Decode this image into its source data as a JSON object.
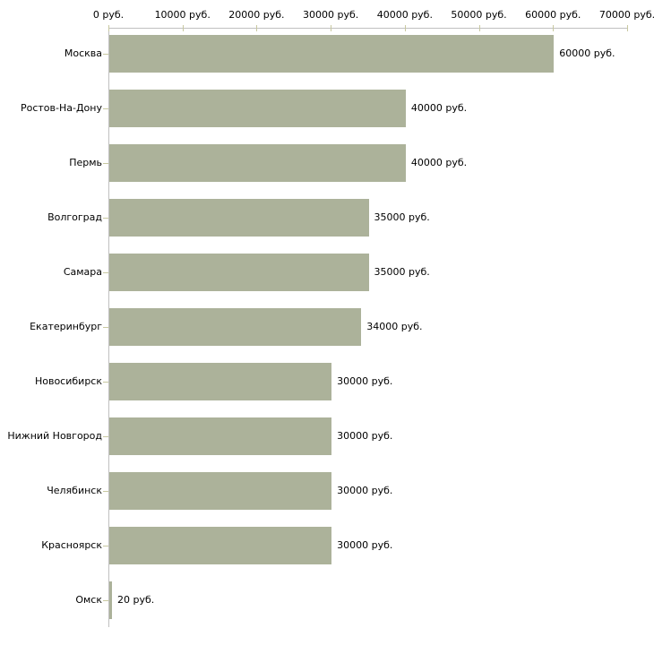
{
  "chart_data": {
    "type": "bar",
    "orientation": "horizontal",
    "title": "",
    "categories": [
      "Москва",
      "Ростов-На-Дону",
      "Пермь",
      "Волгоград",
      "Самара",
      "Екатеринбург",
      "Новосибирск",
      "Нижний Новгород",
      "Челябинск",
      "Красноярск",
      "Омск"
    ],
    "values": [
      60000,
      40000,
      40000,
      35000,
      35000,
      34000,
      30000,
      30000,
      30000,
      30000,
      20
    ],
    "value_labels": [
      "60000 руб.",
      "40000 руб.",
      "40000 руб.",
      "35000 руб.",
      "35000 руб.",
      "34000 руб.",
      "30000 руб.",
      "30000 руб.",
      "30000 руб.",
      "30000 руб.",
      "20 руб."
    ],
    "x_axis": {
      "min": 0,
      "max": 70000,
      "tick_interval": 10000,
      "tick_labels": [
        "0 руб.",
        "10000 руб.",
        "20000 руб.",
        "30000 руб.",
        "40000 руб.",
        "50000 руб.",
        "60000 руб.",
        "70000 руб."
      ]
    },
    "ylabel": "",
    "xlabel": "",
    "grid": false,
    "legend": false,
    "colors": {
      "bar": "#acb29a",
      "axis": "#c0c0c0",
      "tick": "#c8c8a0",
      "text": "#000000",
      "background": "#ffffff"
    }
  }
}
